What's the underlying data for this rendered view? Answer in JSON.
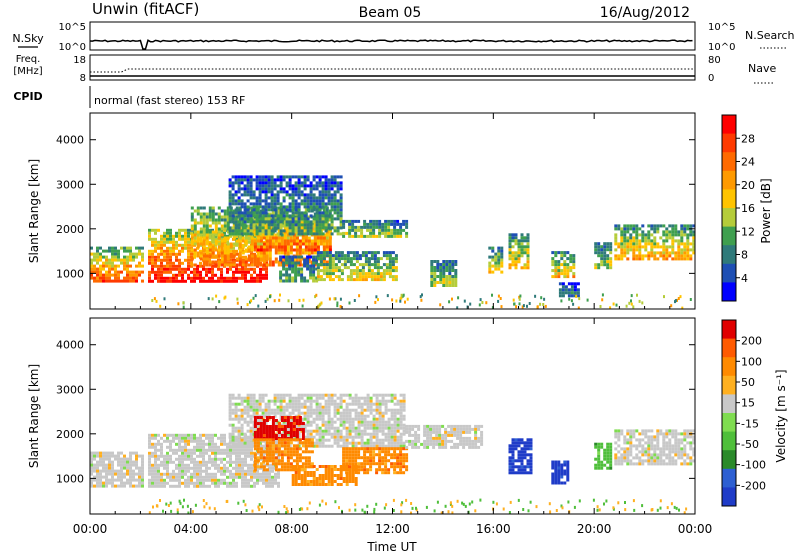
{
  "header": {
    "station": "Unwin (fitACF)",
    "beam": "Beam 05",
    "date": "16/Aug/2012"
  },
  "top_panels": {
    "nsky_label": "N.Sky",
    "nsky_ticks": [
      "10^5",
      "10^0"
    ],
    "nsearch_label": "N.Search",
    "nsearch_ticks": [
      "10^5",
      "10^0"
    ],
    "freq_label": "Freq.",
    "freq_unit": "[MHz]",
    "freq_ticks": [
      "18",
      "8"
    ],
    "nave_label": "Nave",
    "nave_ticks": [
      "80",
      "0"
    ],
    "cpid_label": "CPID",
    "cpid_value": "normal (fast stereo) 153 RF"
  },
  "chart_data": [
    {
      "type": "heatmap",
      "name": "power",
      "ylabel": "Slant Range [km]",
      "yticks": [
        "1000",
        "2000",
        "3000",
        "4000"
      ],
      "ylim": [
        200,
        4600
      ],
      "xlim_hours": [
        0,
        24
      ],
      "colorbar": {
        "label": "Power [dB]",
        "ticks": [
          "4",
          "8",
          "12",
          "16",
          "20",
          "24",
          "28"
        ],
        "colors": [
          "#0000ff",
          "#1e4fb4",
          "#2f7a7a",
          "#3f9f4f",
          "#b5cc3a",
          "#ffc400",
          "#ff9a00",
          "#ff6a00",
          "#ff3a00",
          "#ff0000"
        ]
      },
      "regions": [
        {
          "t": [
            0.0,
            2.1
          ],
          "r": [
            850,
            1600
          ],
          "level": 0.72
        },
        {
          "t": [
            2.3,
            7.0
          ],
          "r": [
            850,
            2000
          ],
          "level": 0.85
        },
        {
          "t": [
            4.0,
            9.5
          ],
          "r": [
            1200,
            2500
          ],
          "level": 0.65
        },
        {
          "t": [
            6.5,
            9.5
          ],
          "r": [
            1500,
            2300
          ],
          "level": 0.75
        },
        {
          "t": [
            5.5,
            10.0
          ],
          "r": [
            1900,
            3200
          ],
          "level": 0.3
        },
        {
          "t": [
            10.0,
            12.5
          ],
          "r": [
            1800,
            2200
          ],
          "level": 0.45
        },
        {
          "t": [
            7.5,
            9.0
          ],
          "r": [
            800,
            1400
          ],
          "level": 0.35
        },
        {
          "t": [
            9.0,
            12.2
          ],
          "r": [
            850,
            1500
          ],
          "level": 0.5
        },
        {
          "t": [
            13.5,
            14.5
          ],
          "r": [
            750,
            1300
          ],
          "level": 0.4
        },
        {
          "t": [
            15.8,
            16.3
          ],
          "r": [
            1000,
            1600
          ],
          "level": 0.5
        },
        {
          "t": [
            16.6,
            17.4
          ],
          "r": [
            1100,
            1900
          ],
          "level": 0.55
        },
        {
          "t": [
            18.3,
            19.2
          ],
          "r": [
            900,
            1500
          ],
          "level": 0.55
        },
        {
          "t": [
            18.6,
            19.4
          ],
          "r": [
            500,
            800
          ],
          "level": 0.2
        },
        {
          "t": [
            20.0,
            20.6
          ],
          "r": [
            1100,
            1700
          ],
          "level": 0.45
        },
        {
          "t": [
            20.8,
            24.0
          ],
          "r": [
            1300,
            2100
          ],
          "level": 0.6
        }
      ]
    },
    {
      "type": "heatmap",
      "name": "velocity",
      "xlabel": "Time UT",
      "ylabel": "Slant Range [km]",
      "xticks": [
        "00:00",
        "04:00",
        "08:00",
        "12:00",
        "16:00",
        "20:00",
        "00:00"
      ],
      "yticks": [
        "1000",
        "2000",
        "3000",
        "4000"
      ],
      "ylim": [
        200,
        4600
      ],
      "xlim_hours": [
        0,
        24
      ],
      "colorbar": {
        "label": "Velocity [m s⁻¹]",
        "ticks": [
          "200",
          "100",
          "50",
          "15",
          "-15",
          "-50",
          "-100",
          "-200"
        ],
        "colors": [
          "#1f3cc8",
          "#2d5fd2",
          "#2a8a2a",
          "#4fbf3a",
          "#7fdc50",
          "#c8c8c8",
          "#ffb020",
          "#ff8a00",
          "#ff5a00",
          "#e00000"
        ]
      },
      "regions": [
        {
          "t": [
            0.0,
            2.1
          ],
          "r": [
            850,
            1600
          ],
          "v": "gray"
        },
        {
          "t": [
            2.3,
            7.5
          ],
          "r": [
            850,
            2000
          ],
          "v": "gray"
        },
        {
          "t": [
            5.5,
            12.5
          ],
          "r": [
            1700,
            2900
          ],
          "v": "gray"
        },
        {
          "t": [
            6.5,
            8.5
          ],
          "r": [
            1900,
            2400
          ],
          "v": "red"
        },
        {
          "t": [
            6.5,
            8.8
          ],
          "r": [
            1200,
            1900
          ],
          "v": "orange"
        },
        {
          "t": [
            8.0,
            10.5
          ],
          "r": [
            850,
            1300
          ],
          "v": "orange"
        },
        {
          "t": [
            10.0,
            12.5
          ],
          "r": [
            1100,
            1700
          ],
          "v": "orange"
        },
        {
          "t": [
            12.5,
            15.5
          ],
          "r": [
            1700,
            2200
          ],
          "v": "gray"
        },
        {
          "t": [
            16.6,
            17.5
          ],
          "r": [
            1100,
            1900
          ],
          "v": "blue"
        },
        {
          "t": [
            18.3,
            19.0
          ],
          "r": [
            900,
            1400
          ],
          "v": "blue"
        },
        {
          "t": [
            20.0,
            20.6
          ],
          "r": [
            1200,
            1800
          ],
          "v": "green"
        },
        {
          "t": [
            20.8,
            24.0
          ],
          "r": [
            1300,
            2100
          ],
          "v": "gray"
        }
      ]
    }
  ]
}
